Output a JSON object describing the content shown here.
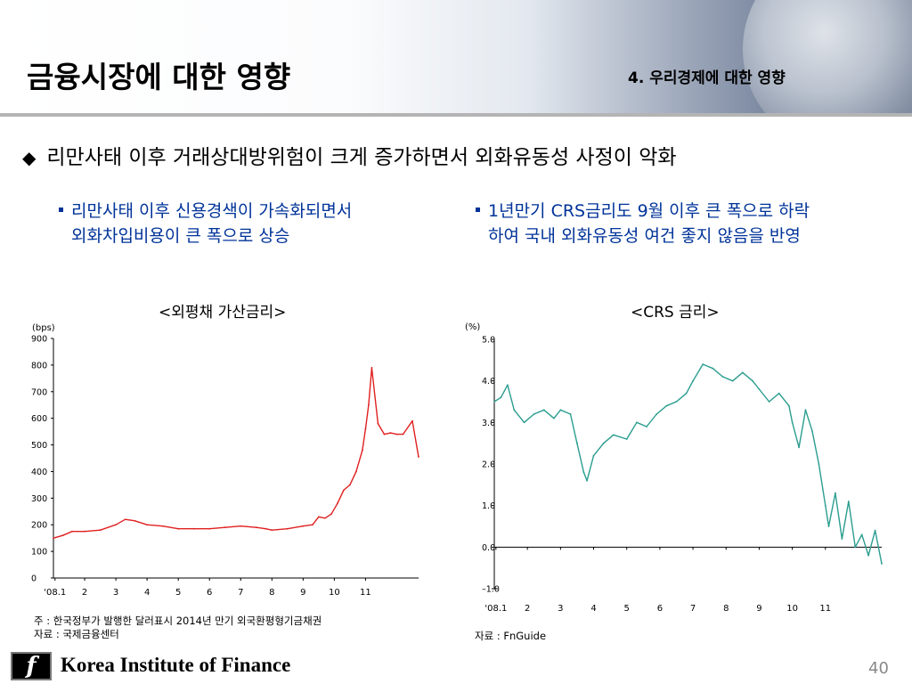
{
  "header": {
    "title": "금융시장에 대한 영향",
    "section": "4. 우리경제에 대한 영향"
  },
  "main_bullet": "리만사태 이후 거래상대방위험이 크게 증가하면서 외화유동성 사정이 악화",
  "sub_bullets": {
    "left": [
      "리만사태 이후 신용경색이 가속화되면서",
      "외화차입비용이 큰 폭으로 상승"
    ],
    "right": [
      "1년만기 CRS금리도 9월 이후 큰 폭으로 하락",
      "하여 국내 외화유동성 여건 좋지 않음을 반영"
    ]
  },
  "notes": {
    "left": [
      "주 : 한국정부가 발행한 달러표시 2014년 만기 외국환평형기금채권",
      "자료 : 국제금융센터"
    ],
    "right": [
      "자료 : FnGuide"
    ]
  },
  "footer": {
    "org": "Korea Institute of Finance",
    "logo_glyph": "f",
    "page": "40"
  },
  "chart_data": [
    {
      "type": "line",
      "title": "<외평채 가산금리>",
      "unit_label": "(bps)",
      "color": "#e02020",
      "ylim": [
        0,
        900
      ],
      "yticks": [
        "0",
        "100",
        "200",
        "300",
        "400",
        "500",
        "600",
        "700",
        "800",
        "900"
      ],
      "xlim": [
        0,
        11.7
      ],
      "xticks": [
        {
          "x": 0.05,
          "label": "'08.1"
        },
        {
          "x": 1,
          "label": "2"
        },
        {
          "x": 2,
          "label": "3"
        },
        {
          "x": 3,
          "label": "4"
        },
        {
          "x": 4,
          "label": "5"
        },
        {
          "x": 5,
          "label": "6"
        },
        {
          "x": 6,
          "label": "7"
        },
        {
          "x": 7,
          "label": "8"
        },
        {
          "x": 8,
          "label": "9"
        },
        {
          "x": 9,
          "label": "10"
        },
        {
          "x": 10,
          "label": "11"
        }
      ],
      "x": [
        0,
        0.3,
        0.6,
        1.0,
        1.5,
        2.0,
        2.3,
        2.6,
        3.0,
        3.5,
        4.0,
        4.5,
        5.0,
        5.5,
        6.0,
        6.5,
        6.8,
        7.0,
        7.5,
        8.0,
        8.3,
        8.5,
        8.7,
        8.9,
        9.1,
        9.3,
        9.5,
        9.7,
        9.9,
        10.0,
        10.1,
        10.2,
        10.4,
        10.6,
        10.8,
        11.0,
        11.2,
        11.5,
        11.7
      ],
      "y": [
        150,
        160,
        175,
        175,
        180,
        200,
        220,
        215,
        200,
        195,
        185,
        185,
        185,
        190,
        195,
        190,
        185,
        180,
        185,
        195,
        200,
        230,
        225,
        240,
        280,
        330,
        350,
        400,
        480,
        560,
        650,
        790,
        580,
        540,
        545,
        540,
        540,
        590,
        455
      ]
    },
    {
      "type": "line",
      "title": "<CRS 금리>",
      "unit_label": "(%)",
      "color": "#2a9d8f",
      "ylim": [
        -1.0,
        5.0
      ],
      "yticks": [
        "–1.0",
        "0.0",
        "1.0",
        "2.0",
        "3.0",
        "4.0",
        "5.0"
      ],
      "xlim": [
        0,
        11.7
      ],
      "xticks": [
        {
          "x": 0.05,
          "label": "'08.1"
        },
        {
          "x": 1,
          "label": "2"
        },
        {
          "x": 2,
          "label": "3"
        },
        {
          "x": 3,
          "label": "4"
        },
        {
          "x": 4,
          "label": "5"
        },
        {
          "x": 5,
          "label": "6"
        },
        {
          "x": 6,
          "label": "7"
        },
        {
          "x": 7,
          "label": "8"
        },
        {
          "x": 8,
          "label": "9"
        },
        {
          "x": 9,
          "label": "10"
        },
        {
          "x": 10,
          "label": "11"
        }
      ],
      "x": [
        0,
        0.2,
        0.4,
        0.6,
        0.9,
        1.2,
        1.5,
        1.8,
        2.0,
        2.3,
        2.5,
        2.7,
        2.8,
        3.0,
        3.3,
        3.6,
        4.0,
        4.3,
        4.6,
        4.9,
        5.2,
        5.5,
        5.8,
        6.0,
        6.3,
        6.6,
        6.9,
        7.2,
        7.5,
        7.8,
        8.0,
        8.3,
        8.6,
        8.9,
        9.0,
        9.2,
        9.4,
        9.6,
        9.8,
        10.0,
        10.1,
        10.3,
        10.5,
        10.7,
        10.9,
        11.1,
        11.3,
        11.5,
        11.7
      ],
      "y": [
        3.5,
        3.6,
        3.9,
        3.3,
        3.0,
        3.2,
        3.3,
        3.1,
        3.3,
        3.2,
        2.5,
        1.8,
        1.6,
        2.2,
        2.5,
        2.7,
        2.6,
        3.0,
        2.9,
        3.2,
        3.4,
        3.5,
        3.7,
        4.0,
        4.4,
        4.3,
        4.1,
        4.0,
        4.2,
        4.0,
        3.8,
        3.5,
        3.7,
        3.4,
        3.0,
        2.4,
        3.3,
        2.8,
        2.0,
        1.0,
        0.5,
        1.3,
        0.2,
        1.1,
        0.0,
        0.3,
        -0.2,
        0.4,
        -0.4
      ]
    }
  ]
}
